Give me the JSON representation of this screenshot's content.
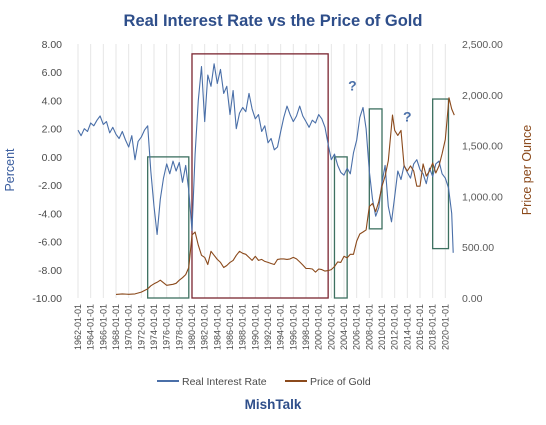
{
  "chart_data": {
    "type": "line",
    "title": "Real Interest Rate vs the Price of Gold",
    "ylabel_left": "Percent",
    "ylabel_right": "Price per Ounce",
    "footer": "MishTalk",
    "left_axis": {
      "ylim": [
        -10,
        8
      ],
      "ticks": [
        "8.00",
        "6.00",
        "4.00",
        "2.00",
        "0.00",
        "-2.00",
        "-4.00",
        "-6.00",
        "-8.00",
        "-10.00"
      ],
      "tick_values": [
        8,
        6,
        4,
        2,
        0,
        -2,
        -4,
        -6,
        -8,
        -10
      ]
    },
    "right_axis": {
      "ylim": [
        0,
        2500
      ],
      "ticks": [
        "2,500.00",
        "2,000.00",
        "1,500.00",
        "1,000.00",
        "500.00",
        "0.00"
      ],
      "tick_values": [
        2500,
        2000,
        1500,
        1000,
        500,
        0
      ]
    },
    "x_axis": {
      "xlim": [
        "1962-01-01",
        "2022-01-01"
      ],
      "ticks": [
        "1962-01-01",
        "1964-01-01",
        "1966-01-01",
        "1968-01-01",
        "1970-01-01",
        "1972-01-01",
        "1974-01-01",
        "1976-01-01",
        "1978-01-01",
        "1980-01-01",
        "1982-01-01",
        "1984-01-01",
        "1986-01-01",
        "1988-01-01",
        "1990-01-01",
        "1992-01-01",
        "1994-01-01",
        "1996-01-01",
        "1998-01-01",
        "2000-01-01",
        "2002-01-01",
        "2004-01-01",
        "2006-01-01",
        "2008-01-01",
        "2010-01-01",
        "2012-01-01",
        "2014-01-01",
        "2016-01-01",
        "2018-01-01",
        "2020-01-01"
      ]
    },
    "series": [
      {
        "name": "Real Interest Rate",
        "axis": "left",
        "color": "#4a6fa8",
        "points": [
          [
            "1962-01-01",
            1.9
          ],
          [
            "1962-07-01",
            1.5
          ],
          [
            "1963-01-01",
            2.0
          ],
          [
            "1963-07-01",
            1.8
          ],
          [
            "1964-01-01",
            2.4
          ],
          [
            "1964-07-01",
            2.2
          ],
          [
            "1965-01-01",
            2.6
          ],
          [
            "1965-07-01",
            2.9
          ],
          [
            "1966-01-01",
            2.3
          ],
          [
            "1966-07-01",
            2.5
          ],
          [
            "1967-01-01",
            1.7
          ],
          [
            "1967-07-01",
            2.1
          ],
          [
            "1968-01-01",
            1.6
          ],
          [
            "1968-07-01",
            1.3
          ],
          [
            "1969-01-01",
            1.8
          ],
          [
            "1969-07-01",
            1.2
          ],
          [
            "1970-01-01",
            0.7
          ],
          [
            "1970-07-01",
            1.5
          ],
          [
            "1971-01-01",
            -0.2
          ],
          [
            "1971-07-01",
            1.1
          ],
          [
            "1972-01-01",
            1.4
          ],
          [
            "1972-07-01",
            1.9
          ],
          [
            "1973-01-01",
            2.2
          ],
          [
            "1973-07-01",
            -1.0
          ],
          [
            "1974-01-01",
            -3.5
          ],
          [
            "1974-07-01",
            -5.5
          ],
          [
            "1975-01-01",
            -3.0
          ],
          [
            "1975-07-01",
            -1.5
          ],
          [
            "1976-01-01",
            -0.5
          ],
          [
            "1976-07-01",
            -1.2
          ],
          [
            "1977-01-01",
            -0.3
          ],
          [
            "1977-07-01",
            -1.0
          ],
          [
            "1978-01-01",
            -0.4
          ],
          [
            "1978-07-01",
            -1.8
          ],
          [
            "1979-01-01",
            -0.6
          ],
          [
            "1979-07-01",
            -2.4
          ],
          [
            "1980-01-01",
            -5.2
          ],
          [
            "1980-07-01",
            0.2
          ],
          [
            "1981-01-01",
            4.0
          ],
          [
            "1981-07-01",
            6.4
          ],
          [
            "1982-01-01",
            2.5
          ],
          [
            "1982-07-01",
            5.8
          ],
          [
            "1983-01-01",
            5.0
          ],
          [
            "1983-07-01",
            6.6
          ],
          [
            "1984-01-01",
            5.2
          ],
          [
            "1984-07-01",
            6.2
          ],
          [
            "1985-01-01",
            4.5
          ],
          [
            "1985-07-01",
            5.0
          ],
          [
            "1986-01-01",
            3.0
          ],
          [
            "1986-07-01",
            4.7
          ],
          [
            "1987-01-01",
            2.0
          ],
          [
            "1987-07-01",
            3.1
          ],
          [
            "1988-01-01",
            3.5
          ],
          [
            "1988-07-01",
            3.2
          ],
          [
            "1989-01-01",
            4.5
          ],
          [
            "1989-07-01",
            3.4
          ],
          [
            "1990-01-01",
            2.7
          ],
          [
            "1990-07-01",
            3.0
          ],
          [
            "1991-01-01",
            1.8
          ],
          [
            "1991-07-01",
            2.2
          ],
          [
            "1992-01-01",
            1.0
          ],
          [
            "1992-07-01",
            1.3
          ],
          [
            "1993-01-01",
            0.5
          ],
          [
            "1993-07-01",
            0.7
          ],
          [
            "1994-01-01",
            1.8
          ],
          [
            "1994-07-01",
            2.8
          ],
          [
            "1995-01-01",
            3.6
          ],
          [
            "1995-07-01",
            3.0
          ],
          [
            "1996-01-01",
            2.5
          ],
          [
            "1996-07-01",
            2.9
          ],
          [
            "1997-01-01",
            3.6
          ],
          [
            "1997-07-01",
            2.9
          ],
          [
            "1998-01-01",
            2.5
          ],
          [
            "1998-07-01",
            2.1
          ],
          [
            "1999-01-01",
            2.6
          ],
          [
            "1999-07-01",
            2.4
          ],
          [
            "2000-01-01",
            3.0
          ],
          [
            "2000-07-01",
            2.7
          ],
          [
            "2001-01-01",
            2.1
          ],
          [
            "2001-07-01",
            0.9
          ],
          [
            "2002-01-01",
            -0.2
          ],
          [
            "2002-07-01",
            0.2
          ],
          [
            "2003-01-01",
            -0.6
          ],
          [
            "2003-07-01",
            -1.1
          ],
          [
            "2004-01-01",
            -1.3
          ],
          [
            "2004-07-01",
            -0.8
          ],
          [
            "2005-01-01",
            -1.2
          ],
          [
            "2005-07-01",
            0.3
          ],
          [
            "2006-01-01",
            1.2
          ],
          [
            "2006-07-01",
            2.8
          ],
          [
            "2007-01-01",
            3.5
          ],
          [
            "2007-07-01",
            2.0
          ],
          [
            "2008-01-01",
            -1.0
          ],
          [
            "2008-07-01",
            -3.0
          ],
          [
            "2009-01-01",
            -4.2
          ],
          [
            "2009-07-01",
            -3.6
          ],
          [
            "2010-01-01",
            -1.8
          ],
          [
            "2010-07-01",
            -0.6
          ],
          [
            "2011-01-01",
            -3.5
          ],
          [
            "2011-07-01",
            -4.6
          ],
          [
            "2012-01-01",
            -2.8
          ],
          [
            "2012-07-01",
            -1.0
          ],
          [
            "2013-01-01",
            -1.6
          ],
          [
            "2013-07-01",
            -0.6
          ],
          [
            "2014-01-01",
            -1.1
          ],
          [
            "2014-07-01",
            -1.5
          ],
          [
            "2015-01-01",
            -0.5
          ],
          [
            "2015-07-01",
            -0.2
          ],
          [
            "2016-01-01",
            -0.9
          ],
          [
            "2016-07-01",
            -1.2
          ],
          [
            "2017-01-01",
            -1.9
          ],
          [
            "2017-07-01",
            -0.8
          ],
          [
            "2018-01-01",
            -1.4
          ],
          [
            "2018-07-01",
            -0.5
          ],
          [
            "2019-01-01",
            -0.3
          ],
          [
            "2019-07-01",
            -1.2
          ],
          [
            "2020-01-01",
            -1.5
          ],
          [
            "2020-07-01",
            -2.2
          ],
          [
            "2021-01-01",
            -4.0
          ],
          [
            "2021-04-01",
            -6.8
          ]
        ]
      },
      {
        "name": "Price of Gold",
        "axis": "right",
        "color": "#8b4a1c",
        "points": [
          [
            "1968-01-01",
            35
          ],
          [
            "1969-01-01",
            40
          ],
          [
            "1970-01-01",
            36
          ],
          [
            "1971-01-01",
            40
          ],
          [
            "1972-01-01",
            58
          ],
          [
            "1973-01-01",
            90
          ],
          [
            "1973-07-01",
            120
          ],
          [
            "1974-01-01",
            140
          ],
          [
            "1974-07-01",
            155
          ],
          [
            "1975-01-01",
            175
          ],
          [
            "1976-01-01",
            125
          ],
          [
            "1977-01-01",
            135
          ],
          [
            "1977-07-01",
            145
          ],
          [
            "1978-01-01",
            175
          ],
          [
            "1978-07-01",
            200
          ],
          [
            "1979-01-01",
            230
          ],
          [
            "1979-07-01",
            300
          ],
          [
            "1980-01-01",
            620
          ],
          [
            "1980-07-01",
            650
          ],
          [
            "1981-01-01",
            520
          ],
          [
            "1981-07-01",
            420
          ],
          [
            "1982-01-01",
            400
          ],
          [
            "1982-07-01",
            330
          ],
          [
            "1983-01-01",
            460
          ],
          [
            "1983-07-01",
            420
          ],
          [
            "1984-01-01",
            380
          ],
          [
            "1984-07-01",
            350
          ],
          [
            "1985-01-01",
            300
          ],
          [
            "1985-07-01",
            320
          ],
          [
            "1986-01-01",
            350
          ],
          [
            "1986-07-01",
            370
          ],
          [
            "1987-01-01",
            420
          ],
          [
            "1987-07-01",
            460
          ],
          [
            "1988-01-01",
            440
          ],
          [
            "1988-07-01",
            430
          ],
          [
            "1989-01-01",
            400
          ],
          [
            "1989-07-01",
            370
          ],
          [
            "1990-01-01",
            410
          ],
          [
            "1990-07-01",
            370
          ],
          [
            "1991-01-01",
            380
          ],
          [
            "1991-07-01",
            360
          ],
          [
            "1992-01-01",
            350
          ],
          [
            "1992-07-01",
            340
          ],
          [
            "1993-01-01",
            330
          ],
          [
            "1993-07-01",
            380
          ],
          [
            "1994-01-01",
            385
          ],
          [
            "1994-07-01",
            385
          ],
          [
            "1995-01-01",
            380
          ],
          [
            "1995-07-01",
            385
          ],
          [
            "1996-01-01",
            400
          ],
          [
            "1996-07-01",
            385
          ],
          [
            "1997-01-01",
            355
          ],
          [
            "1997-07-01",
            325
          ],
          [
            "1998-01-01",
            290
          ],
          [
            "1998-07-01",
            290
          ],
          [
            "1999-01-01",
            285
          ],
          [
            "1999-07-01",
            255
          ],
          [
            "2000-01-01",
            285
          ],
          [
            "2000-07-01",
            280
          ],
          [
            "2001-01-01",
            265
          ],
          [
            "2001-07-01",
            270
          ],
          [
            "2002-01-01",
            280
          ],
          [
            "2002-07-01",
            310
          ],
          [
            "2003-01-01",
            355
          ],
          [
            "2003-07-01",
            350
          ],
          [
            "2004-01-01",
            410
          ],
          [
            "2004-07-01",
            395
          ],
          [
            "2005-01-01",
            430
          ],
          [
            "2005-07-01",
            430
          ],
          [
            "2006-01-01",
            560
          ],
          [
            "2006-07-01",
            630
          ],
          [
            "2007-01-01",
            650
          ],
          [
            "2007-07-01",
            670
          ],
          [
            "2008-01-01",
            900
          ],
          [
            "2008-07-01",
            930
          ],
          [
            "2009-01-01",
            850
          ],
          [
            "2009-07-01",
            950
          ],
          [
            "2010-01-01",
            1100
          ],
          [
            "2010-07-01",
            1200
          ],
          [
            "2011-01-01",
            1350
          ],
          [
            "2011-09-01",
            1800
          ],
          [
            "2012-01-01",
            1650
          ],
          [
            "2012-07-01",
            1600
          ],
          [
            "2013-01-01",
            1650
          ],
          [
            "2013-07-01",
            1300
          ],
          [
            "2014-01-01",
            1250
          ],
          [
            "2014-07-01",
            1300
          ],
          [
            "2015-01-01",
            1250
          ],
          [
            "2015-07-01",
            1100
          ],
          [
            "2016-01-01",
            1100
          ],
          [
            "2016-07-01",
            1320
          ],
          [
            "2017-01-01",
            1200
          ],
          [
            "2017-07-01",
            1250
          ],
          [
            "2018-01-01",
            1330
          ],
          [
            "2018-07-01",
            1230
          ],
          [
            "2019-01-01",
            1300
          ],
          [
            "2019-07-01",
            1420
          ],
          [
            "2020-01-01",
            1560
          ],
          [
            "2020-08-01",
            1970
          ],
          [
            "2021-01-01",
            1860
          ],
          [
            "2021-06-01",
            1800
          ]
        ]
      }
    ],
    "annotations": [
      {
        "type": "box",
        "label": "",
        "color": "#3d7060",
        "x": [
          "1973-01-01",
          "1979-07-01"
        ],
        "y_left": [
          -10,
          0
        ]
      },
      {
        "type": "box",
        "label": "",
        "color": "#7a2530",
        "x": [
          "1980-01-01",
          "2001-07-01"
        ],
        "y_left": [
          -10,
          7.3
        ]
      },
      {
        "type": "box",
        "label": "",
        "color": "#3d7060",
        "x": [
          "2002-07-01",
          "2004-07-01"
        ],
        "y_left": [
          -10,
          0
        ]
      },
      {
        "type": "box",
        "label": "",
        "color": "#3d7060",
        "x": [
          "2008-01-01",
          "2010-01-01"
        ],
        "y_left": [
          -5.1,
          3.4
        ]
      },
      {
        "type": "box",
        "label": "",
        "color": "#3d7060",
        "x": [
          "2018-01-01",
          "2020-07-01"
        ],
        "y_left": [
          -6.5,
          4.1
        ]
      },
      {
        "type": "text",
        "label": "?",
        "color": "#4a6fa8",
        "x": "2005-05-01",
        "y_left": 4.7
      },
      {
        "type": "text",
        "label": "?",
        "color": "#4a6fa8",
        "x": "2014-01-01",
        "y_left": 2.5
      }
    ],
    "grid": true,
    "legend": {
      "position": "bottom",
      "items": [
        {
          "label": "Real Interest Rate",
          "color": "#4a6fa8"
        },
        {
          "label": "Price of Gold",
          "color": "#8b4a1c"
        }
      ]
    },
    "colors": {
      "title": "#2e4e8a",
      "left_axis_label": "#3a5d9e",
      "right_axis_label": "#8b4a1c",
      "tick_label": "#4a4a4a",
      "right_tick_label": "#5a5a5a",
      "gridline": "#e6e6e6",
      "footer": "#2e4e8a"
    }
  }
}
